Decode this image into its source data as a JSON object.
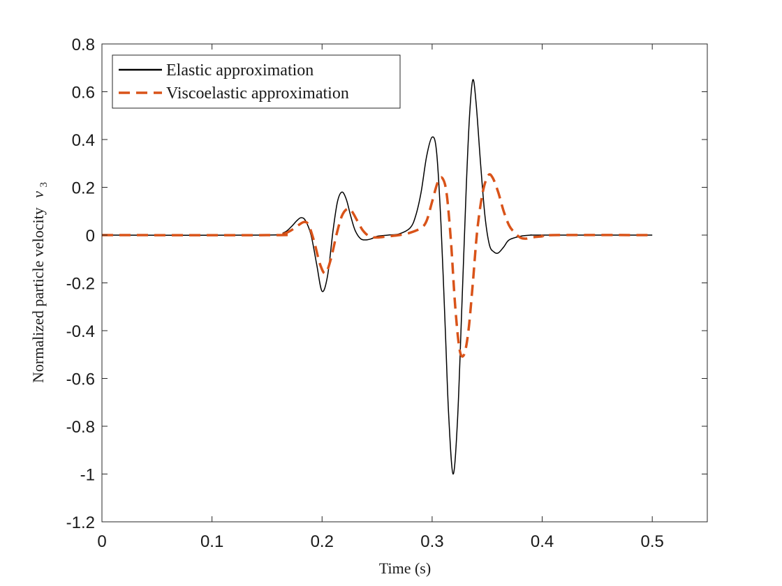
{
  "chart_data": {
    "type": "line",
    "title": "",
    "xlabel": "Time (s)",
    "ylabel": "Normalized particle velocity",
    "ylabel_symbol": "v",
    "ylabel_subscript": "3",
    "xlim": [
      0,
      0.55
    ],
    "ylim": [
      -1.2,
      0.8
    ],
    "xticks": [
      0,
      0.1,
      0.2,
      0.3,
      0.4,
      0.5
    ],
    "xtick_labels": [
      "0",
      "0.1",
      "0.2",
      "0.3",
      "0.4",
      "0.5"
    ],
    "yticks": [
      0.8,
      0.6,
      0.4,
      0.2,
      0,
      -0.2,
      -0.4,
      -0.6,
      -0.8,
      -1,
      -1.2
    ],
    "ytick_labels": [
      "0.8",
      "0.6",
      "0.4",
      "0.2",
      "0",
      "-0.2",
      "-0.4",
      "-0.6",
      "-0.8",
      "-1",
      "-1.2"
    ],
    "grid": false,
    "legend_position": "top-left",
    "series": [
      {
        "name": "Elastic approximation",
        "color": "#000000",
        "dash": "solid",
        "x": [
          0,
          0.15,
          0.165,
          0.172,
          0.177,
          0.181,
          0.185,
          0.19,
          0.195,
          0.2,
          0.205,
          0.21,
          0.214,
          0.218,
          0.222,
          0.226,
          0.23,
          0.235,
          0.24,
          0.245,
          0.25,
          0.26,
          0.27,
          0.28,
          0.285,
          0.29,
          0.295,
          0.3,
          0.304,
          0.308,
          0.312,
          0.315,
          0.319,
          0.323,
          0.327,
          0.331,
          0.334,
          0.337,
          0.34,
          0.344,
          0.348,
          0.352,
          0.356,
          0.36,
          0.365,
          0.37,
          0.38,
          0.39,
          0.4,
          0.5
        ],
        "y": [
          0,
          0,
          0.01,
          0.035,
          0.06,
          0.073,
          0.06,
          0.0,
          -0.12,
          -0.235,
          -0.17,
          0.02,
          0.14,
          0.18,
          0.15,
          0.08,
          0.02,
          -0.015,
          -0.02,
          -0.015,
          -0.005,
          0.0,
          0.005,
          0.03,
          0.08,
          0.18,
          0.33,
          0.41,
          0.35,
          0.05,
          -0.4,
          -0.75,
          -1.0,
          -0.78,
          -0.3,
          0.2,
          0.5,
          0.65,
          0.55,
          0.3,
          0.08,
          -0.04,
          -0.07,
          -0.075,
          -0.05,
          -0.02,
          -0.005,
          0.0,
          0.0,
          0.0
        ]
      },
      {
        "name": "Viscoelastic approximation",
        "color": "#D95319",
        "dash": "dashed",
        "x": [
          0,
          0.155,
          0.165,
          0.172,
          0.178,
          0.184,
          0.188,
          0.193,
          0.198,
          0.203,
          0.208,
          0.213,
          0.218,
          0.223,
          0.227,
          0.232,
          0.237,
          0.243,
          0.25,
          0.26,
          0.27,
          0.28,
          0.29,
          0.295,
          0.3,
          0.305,
          0.309,
          0.313,
          0.317,
          0.321,
          0.325,
          0.329,
          0.333,
          0.337,
          0.341,
          0.346,
          0.351,
          0.355,
          0.36,
          0.365,
          0.37,
          0.375,
          0.38,
          0.385,
          0.39,
          0.4,
          0.41,
          0.5
        ],
        "y": [
          0,
          0,
          0.005,
          0.02,
          0.04,
          0.055,
          0.04,
          -0.03,
          -0.12,
          -0.16,
          -0.1,
          0.0,
          0.08,
          0.11,
          0.1,
          0.06,
          0.02,
          -0.005,
          -0.01,
          -0.005,
          0.0,
          0.01,
          0.03,
          0.06,
          0.14,
          0.22,
          0.24,
          0.18,
          -0.02,
          -0.3,
          -0.48,
          -0.5,
          -0.4,
          -0.2,
          0.02,
          0.18,
          0.25,
          0.24,
          0.18,
          0.1,
          0.04,
          0.01,
          -0.01,
          -0.015,
          -0.01,
          -0.005,
          0.0,
          0.0
        ]
      }
    ]
  }
}
